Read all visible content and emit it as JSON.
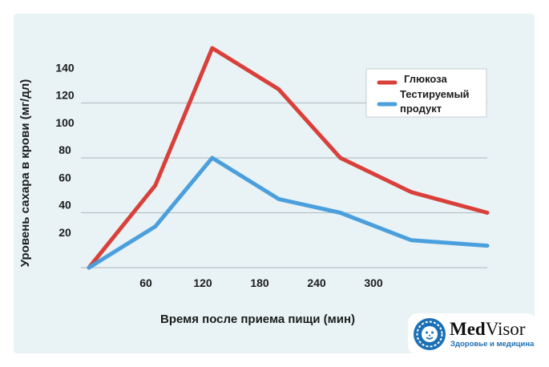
{
  "chart_data": {
    "type": "line",
    "title": "",
    "xlabel": "Время после приема пищи (мин)",
    "ylabel": "Уровень сахара в крови (мг/дл)",
    "x": [
      0,
      70,
      130,
      200,
      265,
      340,
      420
    ],
    "x_ticks": [
      60,
      120,
      180,
      240,
      300
    ],
    "y_ticks": [
      20,
      40,
      60,
      80,
      100,
      120,
      140
    ],
    "xlim": [
      0,
      420
    ],
    "ylim": [
      0,
      160
    ],
    "grid": "horizontal",
    "legend_position": "top-right",
    "series": [
      {
        "name": "Глюкоза",
        "color": "#d9403a",
        "values": [
          0,
          60,
          160,
          130,
          80,
          55,
          40
        ]
      },
      {
        "name": "Тестируемый продукт",
        "color": "#4a9fdc",
        "values": [
          0,
          30,
          80,
          50,
          40,
          20,
          16
        ]
      }
    ],
    "legend_lines": [
      [
        "Глюкоза"
      ],
      [
        "Тестируемый",
        "продукт"
      ]
    ]
  },
  "logo": {
    "name_bold": "Med",
    "name_regular": "Visor",
    "tagline": "Здоровье и медицина",
    "accent_color": "#1b6fb5"
  }
}
